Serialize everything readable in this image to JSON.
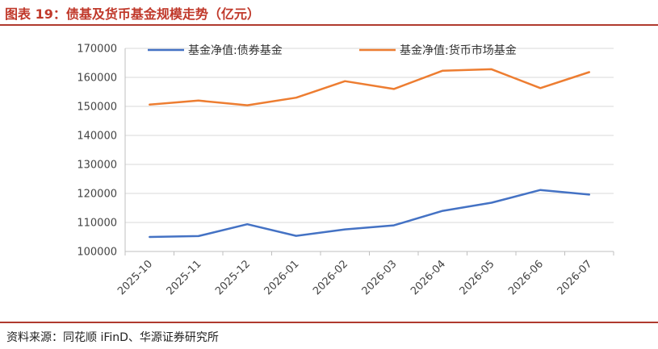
{
  "figure": {
    "title": "图表 19：债基及货币基金规模走势（亿元）",
    "source": "资料来源：同花顺 iFinD、华源证券研究所"
  },
  "chart_data": {
    "type": "line",
    "title": "",
    "xlabel": "",
    "ylabel": "",
    "categories": [
      "2025-10",
      "2025-11",
      "2025-12",
      "2026-01",
      "2026-02",
      "2026-03",
      "2026-04",
      "2026-05",
      "2026-06",
      "2026-07"
    ],
    "ylim": [
      100000,
      170000
    ],
    "yticks": [
      100000,
      110000,
      120000,
      130000,
      140000,
      150000,
      160000,
      170000
    ],
    "grid": "horizontal",
    "legend": "top-center",
    "series": [
      {
        "name": "基金净值:债券基金",
        "color": "#4472c4",
        "values": [
          105000,
          105300,
          109400,
          105400,
          107600,
          109000,
          114000,
          116800,
          121200,
          119600
        ]
      },
      {
        "name": "基金净值:货币市场基金",
        "color": "#ed7d31",
        "values": [
          150600,
          152000,
          150400,
          153000,
          158700,
          156000,
          162300,
          162800,
          156300,
          161800
        ]
      }
    ]
  }
}
